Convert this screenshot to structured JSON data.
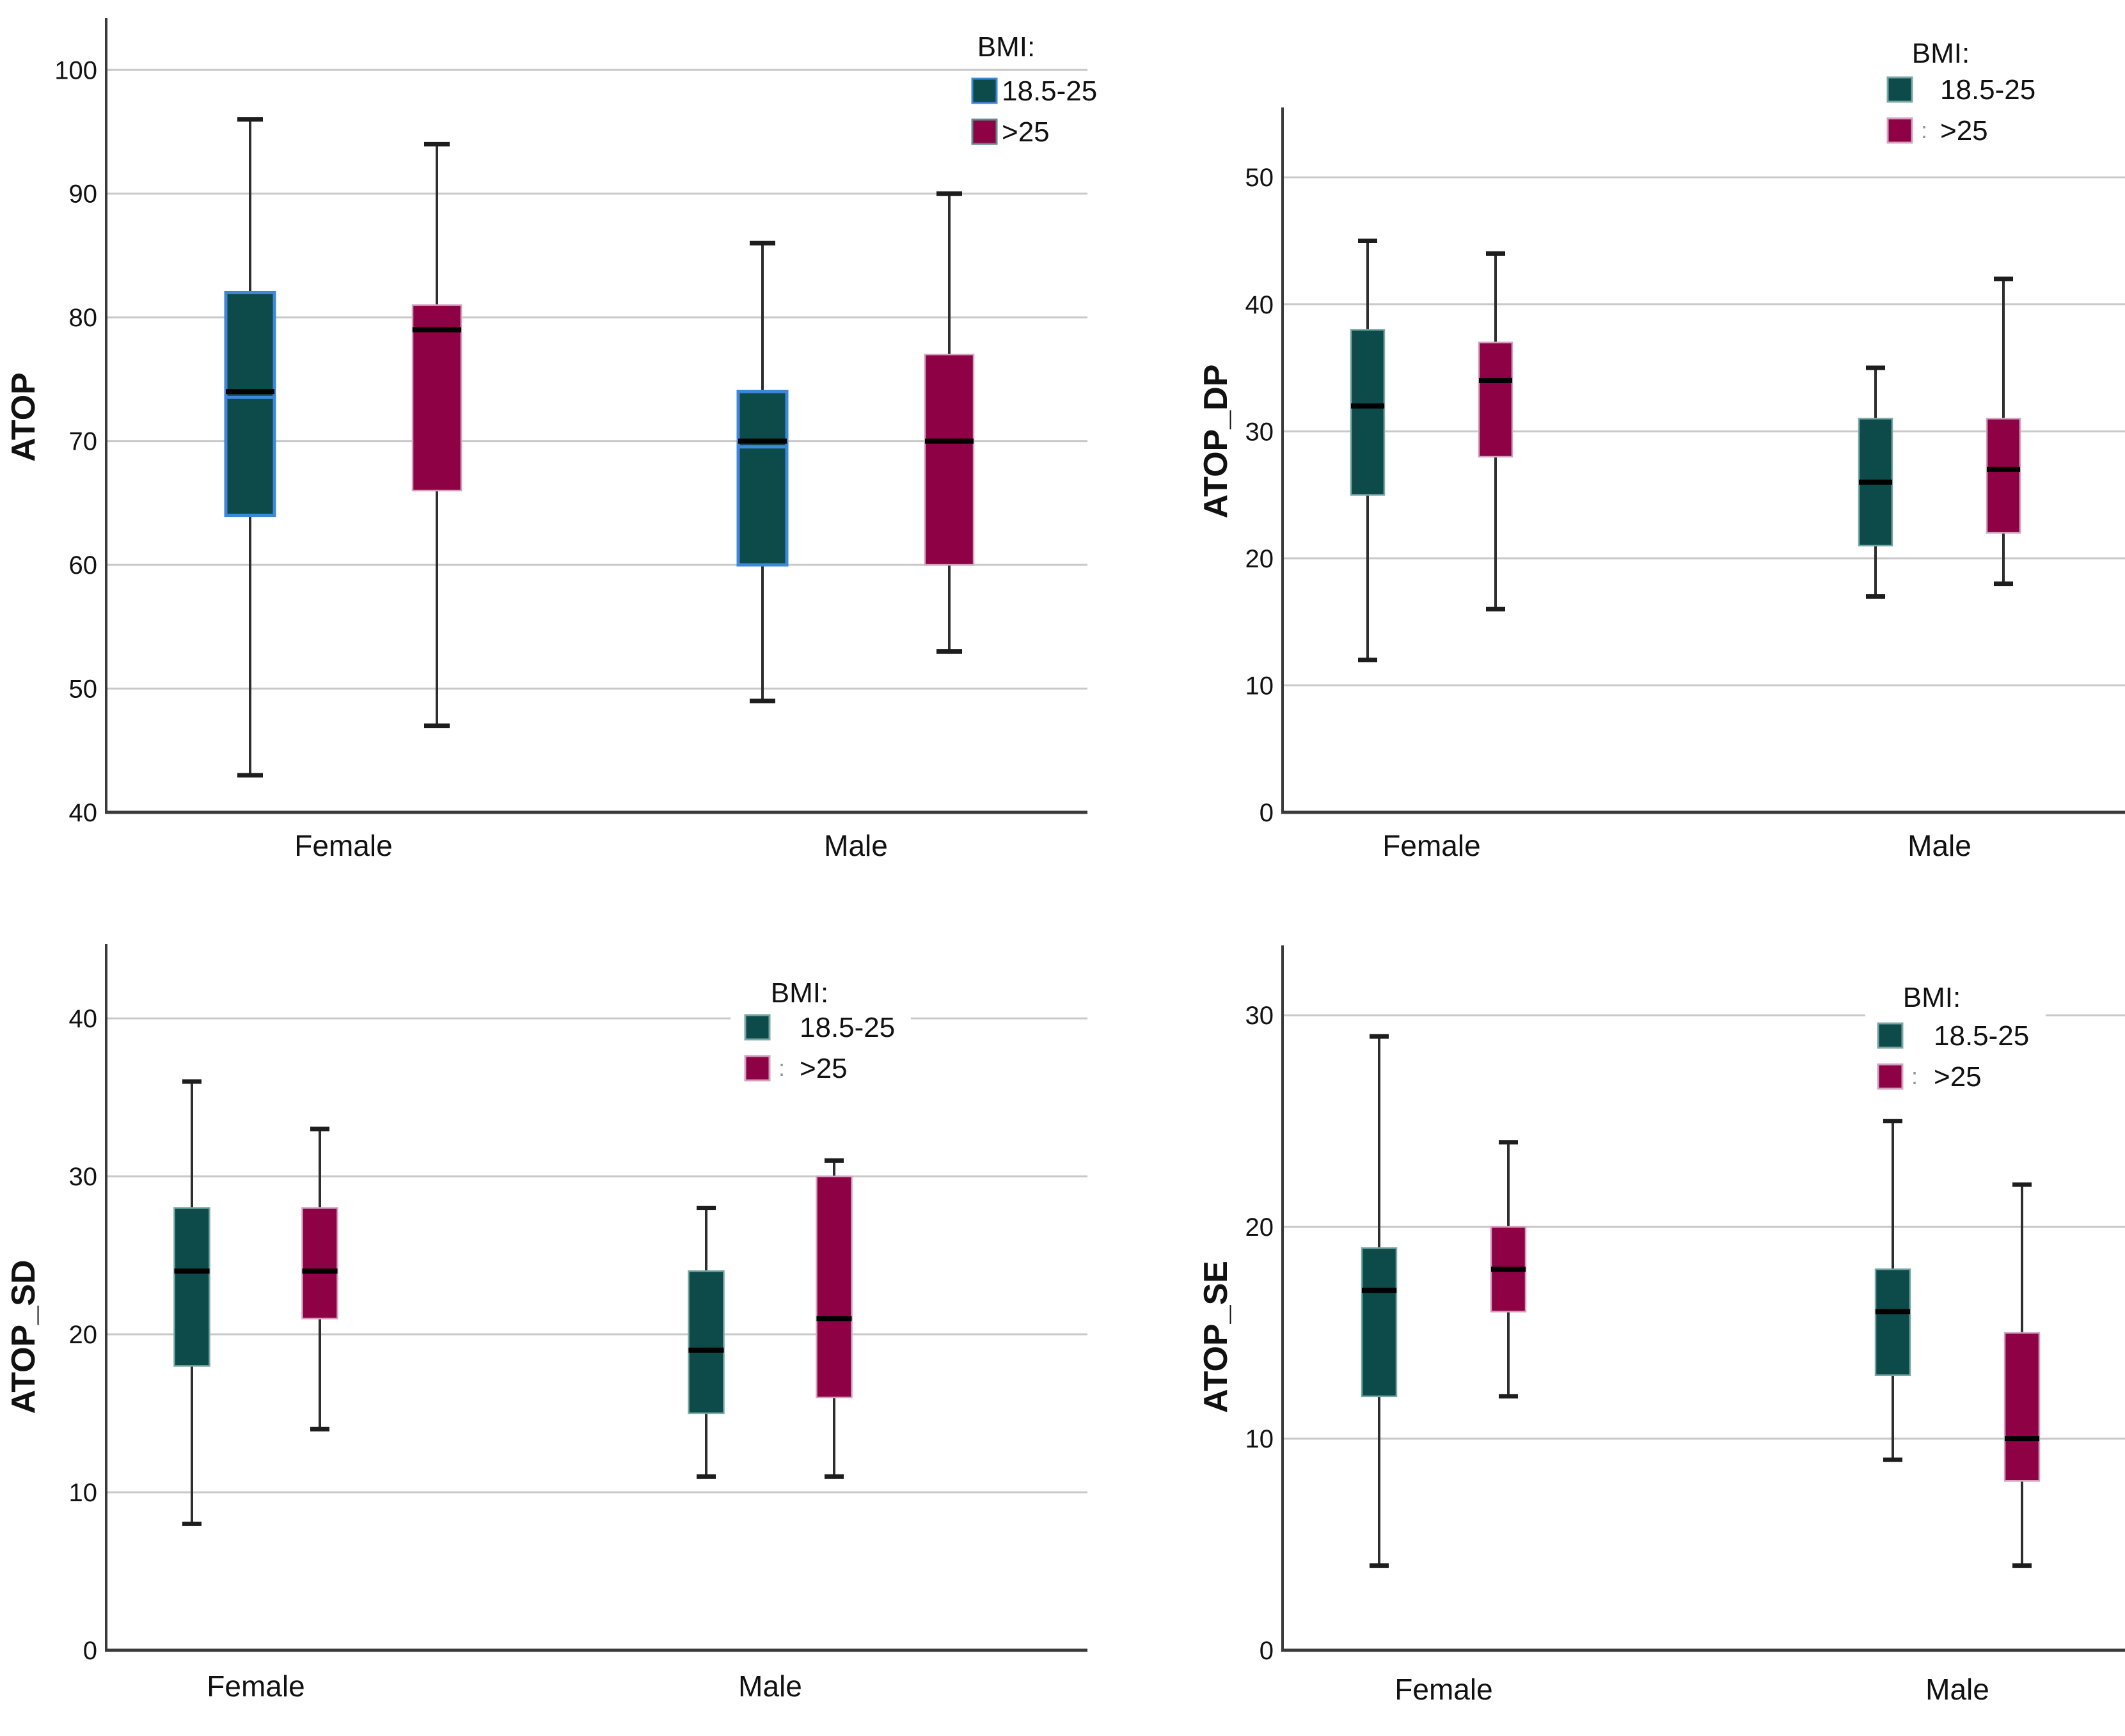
{
  "page": {
    "background": "#FFFFFF"
  },
  "colors": {
    "teal_fill": "#0D4B4B",
    "teal_edge": "#79A8A4",
    "maroon_fill": "#8E0144",
    "maroon_edge": "#D2A3BF",
    "highlight_blue": "#3E87D9",
    "gridline": "#C9C9C9",
    "axis": "#3A3A3A",
    "whisker": "#2E2E2E",
    "median": "#000000",
    "text": "#111111",
    "legend_colon": "#8A9596",
    "tl_maroon_swatch_edge": "#5E8C8A"
  },
  "legend": {
    "title": "BMI:",
    "entries": [
      "18.5-25",
      ">25"
    ]
  },
  "categories": [
    "Female",
    "Male"
  ],
  "chart_data": [
    {
      "type": "box",
      "id": "atop",
      "ylabel": "ATOP",
      "categories": [
        "Female",
        "Male"
      ],
      "legend_title": "BMI:",
      "legend_entries": [
        "18.5-25",
        ">25"
      ],
      "yticks": [
        100,
        90,
        80,
        70,
        60,
        50,
        40
      ],
      "ylim": [
        40,
        104.2
      ],
      "grid": true,
      "legend_position": "top-right-inside",
      "series": [
        {
          "name": "18.5-25",
          "color_key": "teal",
          "boxes": [
            {
              "category": "Female",
              "whisker_low": 43,
              "q1": 64,
              "median": 74,
              "q3": 82,
              "whisker_high": 96
            },
            {
              "category": "Male",
              "whisker_low": 49,
              "q1": 60,
              "median": 70,
              "q3": 74,
              "whisker_high": 86
            }
          ]
        },
        {
          "name": ">25",
          "color_key": "maroon",
          "boxes": [
            {
              "category": "Female",
              "whisker_low": 47,
              "q1": 66,
              "median": 79,
              "q3": 81,
              "whisker_high": 94
            },
            {
              "category": "Male",
              "whisker_low": 53,
              "q1": 60,
              "median": 70,
              "q3": 77,
              "whisker_high": 90
            }
          ]
        }
      ]
    },
    {
      "type": "box",
      "id": "atop-dp",
      "ylabel": "ATOP_DP",
      "categories": [
        "Female",
        "Male"
      ],
      "legend_title": "BMI:",
      "legend_entries": [
        "18.5-25",
        ">25"
      ],
      "yticks": [
        50,
        40,
        30,
        20,
        10,
        0
      ],
      "ylim": [
        0,
        55.5
      ],
      "grid": true,
      "legend_position": "top-right-inside",
      "series": [
        {
          "name": "18.5-25",
          "color_key": "teal",
          "boxes": [
            {
              "category": "Female",
              "whisker_low": 12,
              "q1": 25,
              "median": 32,
              "q3": 38,
              "whisker_high": 45
            },
            {
              "category": "Male",
              "whisker_low": 17,
              "q1": 21,
              "median": 26,
              "q3": 31,
              "whisker_high": 35
            }
          ]
        },
        {
          "name": ">25",
          "color_key": "maroon",
          "boxes": [
            {
              "category": "Female",
              "whisker_low": 16,
              "q1": 28,
              "median": 34,
              "q3": 37,
              "whisker_high": 44
            },
            {
              "category": "Male",
              "whisker_low": 18,
              "q1": 22,
              "median": 27,
              "q3": 31,
              "whisker_high": 42
            }
          ]
        }
      ]
    },
    {
      "type": "box",
      "id": "atop-sd",
      "ylabel": "ATOP_SD",
      "categories": [
        "Female",
        "Male"
      ],
      "legend_title": "BMI:",
      "legend_entries": [
        "18.5-25",
        ">25"
      ],
      "yticks": [
        40,
        30,
        20,
        10,
        0
      ],
      "ylim": [
        0,
        44.7
      ],
      "grid": true,
      "legend_position": "top-center-inside",
      "series": [
        {
          "name": "18.5-25",
          "color_key": "teal",
          "boxes": [
            {
              "category": "Female",
              "whisker_low": 8,
              "q1": 18,
              "median": 24,
              "q3": 28,
              "whisker_high": 36
            },
            {
              "category": "Male",
              "whisker_low": 11,
              "q1": 15,
              "median": 19,
              "q3": 24,
              "whisker_high": 28
            }
          ]
        },
        {
          "name": ">25",
          "color_key": "maroon",
          "boxes": [
            {
              "category": "Female",
              "whisker_low": 14,
              "q1": 21,
              "median": 24,
              "q3": 28,
              "whisker_high": 33
            },
            {
              "category": "Male",
              "whisker_low": 11,
              "q1": 16,
              "median": 21,
              "q3": 30,
              "whisker_high": 31
            }
          ]
        }
      ]
    },
    {
      "type": "box",
      "id": "atop-se",
      "ylabel": "ATOP_SE",
      "categories": [
        "Female",
        "Male"
      ],
      "legend_title": "BMI:",
      "legend_entries": [
        "18.5-25",
        ">25"
      ],
      "yticks": [
        30,
        20,
        10,
        0
      ],
      "ylim": [
        0,
        33.3
      ],
      "grid": true,
      "legend_position": "top-right-inside",
      "series": [
        {
          "name": "18.5-25",
          "color_key": "teal",
          "boxes": [
            {
              "category": "Female",
              "whisker_low": 4,
              "q1": 12,
              "median": 17,
              "q3": 19,
              "whisker_high": 29
            },
            {
              "category": "Male",
              "whisker_low": 9,
              "q1": 13,
              "median": 16,
              "q3": 18,
              "whisker_high": 25
            }
          ]
        },
        {
          "name": ">25",
          "color_key": "maroon",
          "boxes": [
            {
              "category": "Female",
              "whisker_low": 12,
              "q1": 16,
              "median": 18,
              "q3": 20,
              "whisker_high": 24
            },
            {
              "category": "Male",
              "whisker_low": 4,
              "q1": 8,
              "median": 10,
              "q3": 15,
              "whisker_high": 22
            }
          ]
        }
      ]
    }
  ]
}
